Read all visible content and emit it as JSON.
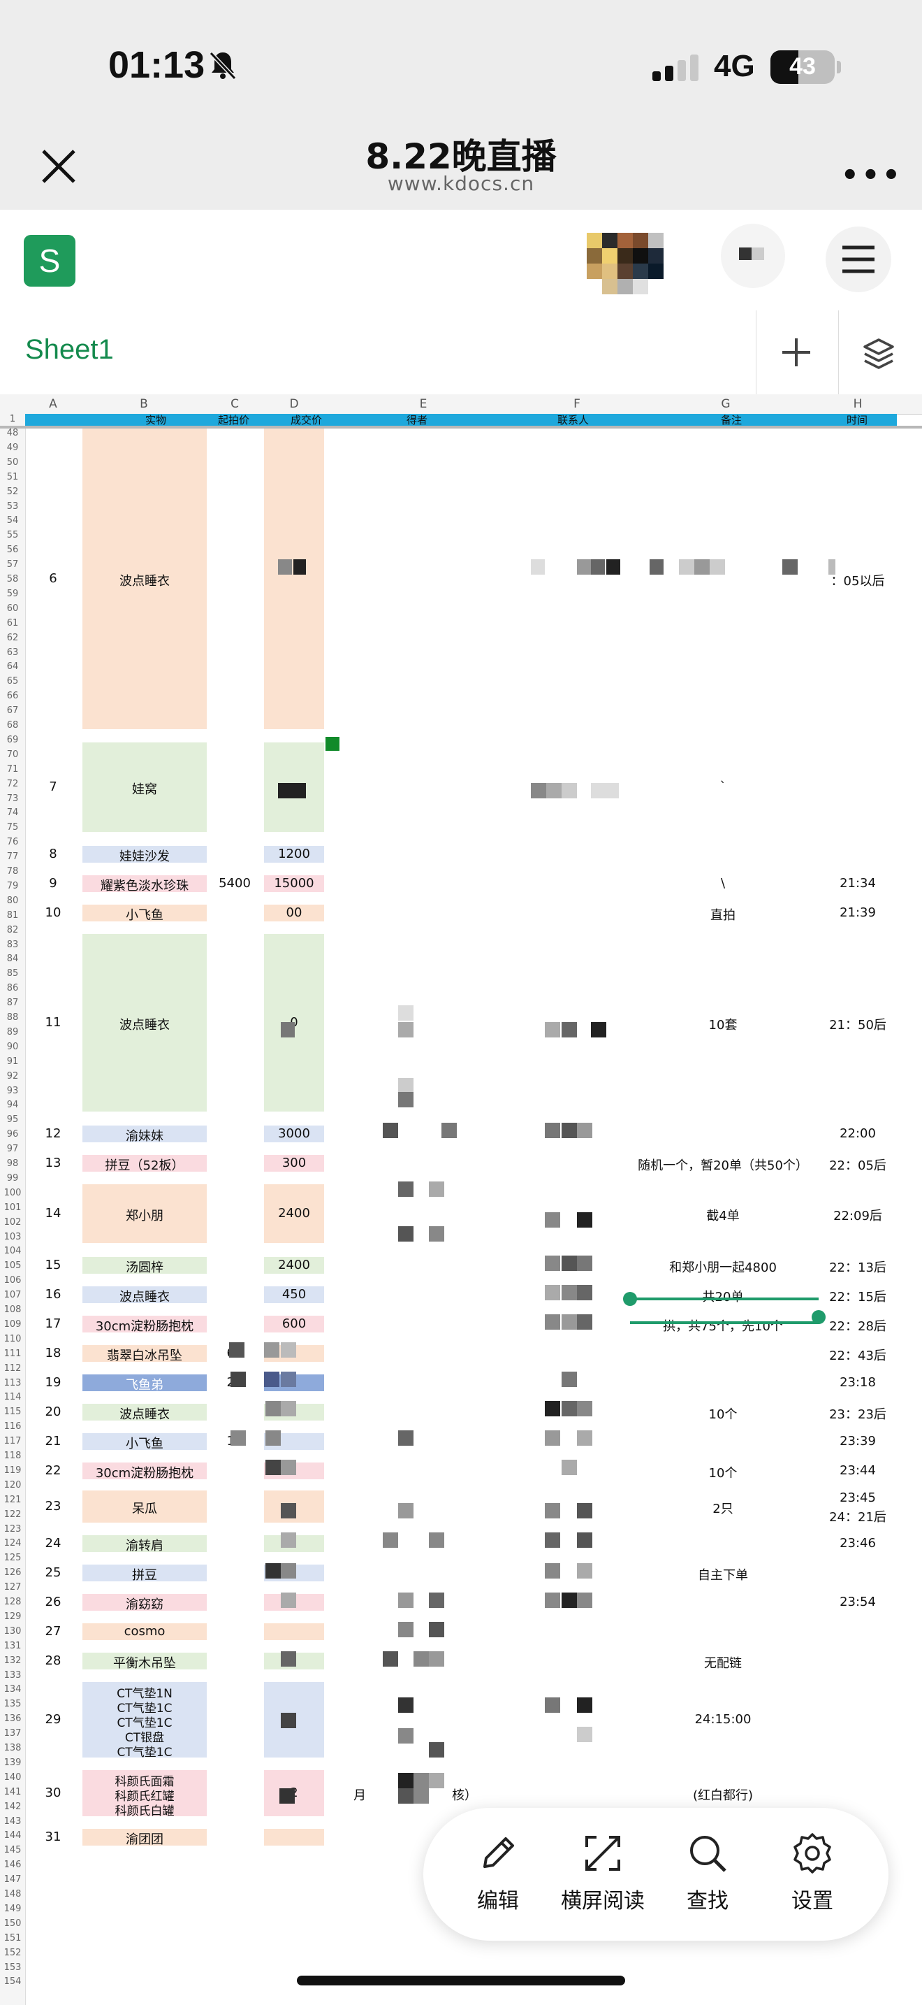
{
  "status_bar": {
    "time": "01:13",
    "network": "4G",
    "battery": "43",
    "battery_level": 0.43
  },
  "nav": {
    "title": "8.22晚直播",
    "url": "www.kdocs.cn"
  },
  "toolbar": {
    "app_icon": "S"
  },
  "tabs": {
    "sheet": "Sheet1"
  },
  "columns": [
    "A",
    "B",
    "C",
    "D",
    "E",
    "F",
    "G",
    "H"
  ],
  "header_row": {
    "row": "1",
    "B": "实物",
    "C": "起拍价",
    "D": "成交价",
    "E": "得者",
    "F": "联系人",
    "G": "备注",
    "H": "时间"
  },
  "rows": [
    {
      "A": "6",
      "B": "波点睡衣",
      "H": "：05以后"
    },
    {
      "A": "7",
      "B": "娃窝",
      "G": "`"
    },
    {
      "A": "8",
      "B": "娃娃沙发",
      "D": "1200"
    },
    {
      "A": "9",
      "B": "耀紫色淡水珍珠",
      "C": "5400",
      "D": "15000",
      "G": "\\",
      "H": "21:34"
    },
    {
      "A": "10",
      "B": "小飞鱼",
      "D": "00",
      "G": "直拍",
      "H": "21:39"
    },
    {
      "A": "11",
      "B": "波点睡衣",
      "D": "0",
      "G": "10套",
      "H": "21：50后"
    },
    {
      "A": "12",
      "B": "渝妹妹",
      "D": "3000",
      "H": "22:00"
    },
    {
      "A": "13",
      "B": "拼豆（52板）",
      "D": "300",
      "G": "随机一个，暂20单（共50个）",
      "H": "22：05后"
    },
    {
      "A": "14",
      "B": "郑小朋",
      "D": "2400",
      "G": "截4单",
      "H": "22:09后"
    },
    {
      "A": "15",
      "B": "汤圆梓",
      "D": "2400",
      "G": "和郑小朋一起4800",
      "H": "22：13后"
    },
    {
      "A": "16",
      "B": "波点睡衣",
      "D": "450",
      "G": "共20单",
      "H": "22：15后"
    },
    {
      "A": "17",
      "B": "30cm淀粉肠抱枕",
      "D": "600",
      "G": "拱，共75个，先10个",
      "H": "22：28后"
    },
    {
      "A": "18",
      "B": "翡翠白冰吊坠",
      "C": "60",
      "H": "22：43后"
    },
    {
      "A": "19",
      "B": "飞鱼弟",
      "C": "27",
      "H": "23:18"
    },
    {
      "A": "20",
      "B": "波点睡衣",
      "G": "10个",
      "H": "23：23后"
    },
    {
      "A": "21",
      "B": "小飞鱼",
      "C": "12",
      "H": "23:39"
    },
    {
      "A": "22",
      "B": "30cm淀粉肠抱枕",
      "G": "10个",
      "H": "23:44"
    },
    {
      "A": "23",
      "B": "呆瓜",
      "G": "2只",
      "H": "23:45",
      "H2": "24：21后"
    },
    {
      "A": "24",
      "B": "渝转肩",
      "H": "23:46"
    },
    {
      "A": "25",
      "B": "拼豆",
      "G": "自主下单"
    },
    {
      "A": "26",
      "B": "渝窈窈",
      "H": "23:54"
    },
    {
      "A": "27",
      "B": "cosmo"
    },
    {
      "A": "28",
      "B": "平衡木吊坠",
      "G": "无配链"
    },
    {
      "A": "29",
      "B_lines": [
        "CT气垫1N",
        "CT气垫1C",
        "CT气垫1C",
        "CT银盘",
        "CT气垫1C"
      ],
      "G": "24:15:00"
    },
    {
      "A": "30",
      "B_lines": [
        "科颜氏面霜",
        "科颜氏红罐",
        "科颜氏白罐"
      ],
      "D": "2",
      "E": "月",
      "E2": "核）",
      "G": "(红白都行)"
    },
    {
      "A": "31",
      "B": "渝团团"
    }
  ],
  "row_numbers_start": 48,
  "dock": [
    {
      "label": "编辑",
      "icon": "pencil-icon"
    },
    {
      "label": "横屏阅读",
      "icon": "expand-icon"
    },
    {
      "label": "查找",
      "icon": "search-icon"
    },
    {
      "label": "设置",
      "icon": "gear-icon"
    }
  ],
  "colors": {
    "accent": "#1f9b5b",
    "header_band": "#1ea8dc",
    "peach": "#fbe2d0",
    "green": "#e2efda",
    "blue": "#dae3f3",
    "pink": "#fadbe0",
    "dark_blue": "#8eaadb"
  }
}
